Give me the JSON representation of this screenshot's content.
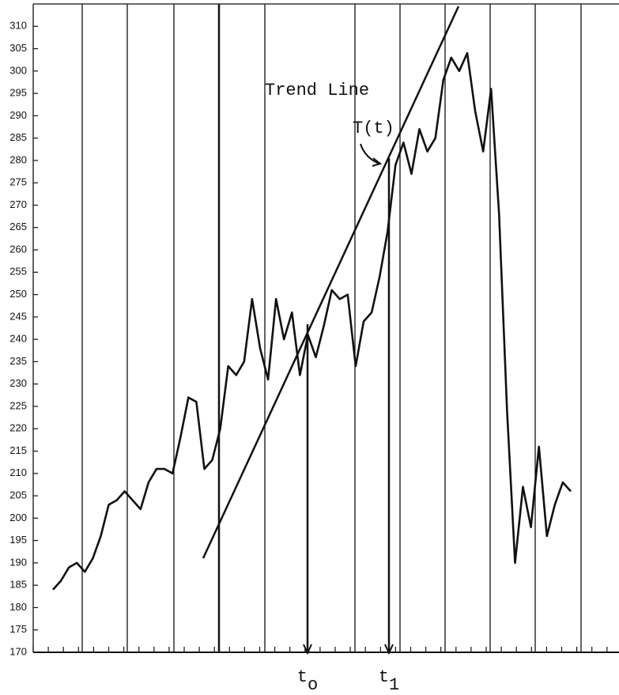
{
  "chart_data": {
    "type": "line",
    "values": [
      184,
      186,
      189,
      190,
      188,
      191,
      196,
      203,
      204,
      206,
      204,
      202,
      208,
      211,
      211,
      210,
      218,
      227,
      226,
      211,
      213,
      220,
      234,
      232,
      235,
      249,
      238,
      231,
      249,
      240,
      246,
      232,
      241,
      236,
      243,
      251,
      249,
      250,
      234,
      244,
      246,
      254,
      264,
      279,
      284,
      277,
      287,
      282,
      285,
      298,
      303,
      300,
      304,
      291,
      282,
      296,
      268,
      224,
      190,
      207,
      198,
      216,
      196,
      203,
      208,
      206
    ],
    "color": "#111111",
    "ylim": [
      170,
      315
    ],
    "yticks": [
      170,
      175,
      180,
      185,
      190,
      195,
      200,
      205,
      210,
      215,
      220,
      225,
      230,
      235,
      240,
      245,
      250,
      255,
      260,
      265,
      270,
      275,
      280,
      285,
      290,
      295,
      300,
      305,
      310
    ],
    "annotations": {
      "trend": "Trend Line",
      "trend_value": "T(t)",
      "t0": {
        "text": "t",
        "sub": "o"
      },
      "t1": {
        "text": "t",
        "sub": "1"
      }
    }
  }
}
